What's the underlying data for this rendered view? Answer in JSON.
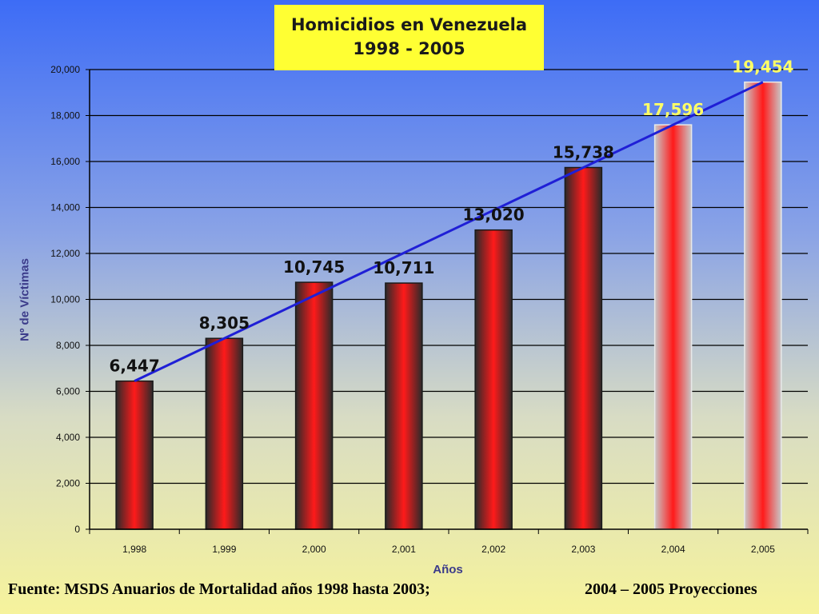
{
  "chart_data": {
    "type": "bar",
    "title_line1": "Homicidios en Venezuela",
    "title_line2": "1998 - 2005",
    "xlabel": "Años",
    "ylabel": "Nº de Víctimas",
    "categories": [
      "1,998",
      "1,999",
      "2,000",
      "2,001",
      "2,002",
      "2,003",
      "2,004",
      "2,005"
    ],
    "values": [
      6447,
      8305,
      10745,
      10711,
      13020,
      15738,
      17596,
      19454
    ],
    "value_labels": [
      "6,447",
      "8,305",
      "10,745",
      "10,711",
      "13,020",
      "15,738",
      "17,596",
      "19,454"
    ],
    "projected": [
      false,
      false,
      false,
      false,
      false,
      false,
      true,
      true
    ],
    "ylim": [
      0,
      20000
    ],
    "yticks": [
      0,
      2000,
      4000,
      6000,
      8000,
      10000,
      12000,
      14000,
      16000,
      18000,
      20000
    ],
    "ytick_labels": [
      "0",
      "2,000",
      "4,000",
      "6,000",
      "8,000",
      "10,000",
      "12,000",
      "14,000",
      "16,000",
      "18,000",
      "20,000"
    ],
    "trendline": {
      "from_value": 6447,
      "to_value": 19454,
      "color": "#1f1fd6"
    },
    "grid": true,
    "colors": {
      "bar_center": "#ff1a1a",
      "bar_edge": "#2a2a2a",
      "projected_edge": "#bfbfbf",
      "label": "#111111",
      "projected_label": "#ffff66",
      "title_bg": "#ffff33"
    }
  },
  "footer": {
    "source": "Fuente: MSDS Anuarios de Mortalidad años 1998 hasta 2003;",
    "projection": "2004 – 2005 Proyecciones"
  }
}
